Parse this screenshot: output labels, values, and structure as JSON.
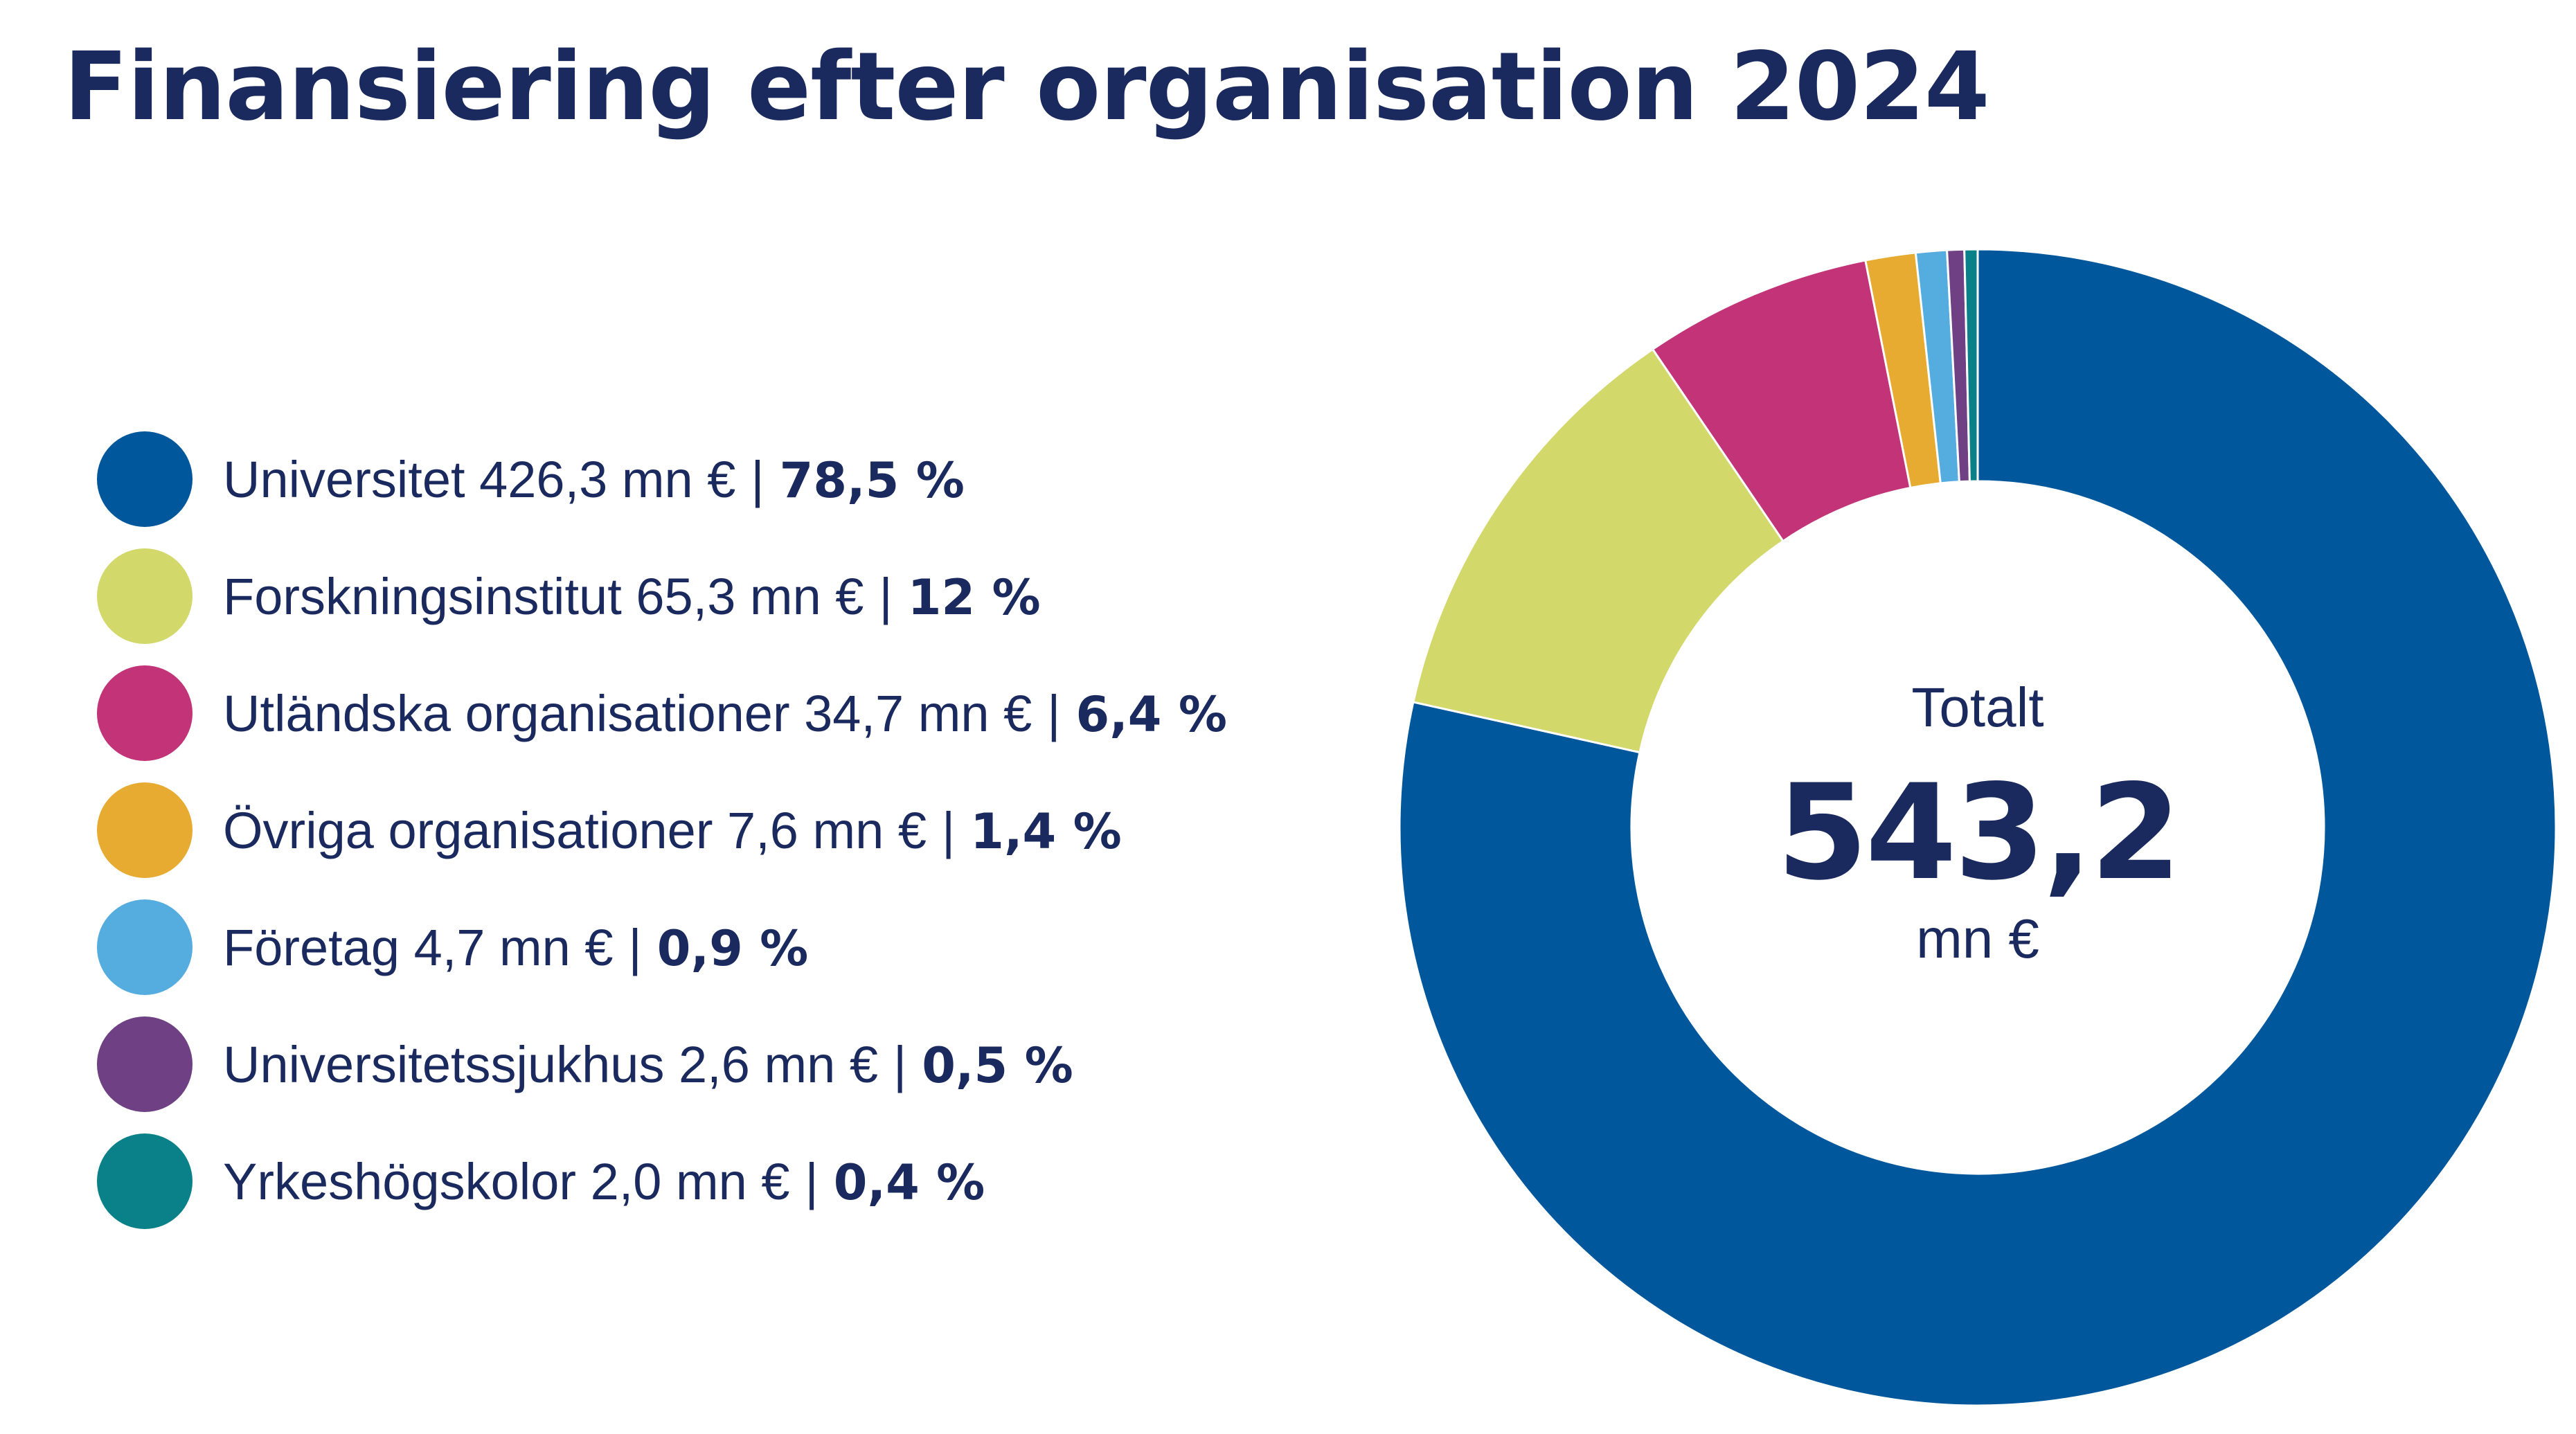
{
  "chart_data": {
    "type": "pie",
    "title": "Finansiering efter organisation 2024",
    "unit": "mn €",
    "categories": [
      "Universitet",
      "Forskningsinstitut",
      "Utländska organisationer",
      "Övriga organisationer",
      "Företag",
      "Universitetssjukhus",
      "Yrkeshögskolor"
    ],
    "values": [
      426.3,
      65.3,
      34.7,
      7.6,
      4.7,
      2.6,
      2.0
    ],
    "value_labels": [
      "426,3 mn €",
      "65,3 mn €",
      "34,7 mn €",
      "7,6 mn €",
      "4,7 mn €",
      "2,6 mn €",
      "2,0 mn €"
    ],
    "percent_labels": [
      "78,5 %",
      "12 %",
      "6,4 %",
      "1,4 %",
      "0,9 %",
      "0,5 %",
      "0,4 %"
    ],
    "colors": [
      "#00579b",
      "#d2d96a",
      "#c23378",
      "#e6ab30",
      "#55acdf",
      "#6f4184",
      "#0a8189"
    ],
    "legend_position": "left",
    "center_label": {
      "top": "Totalt",
      "value": "543,2",
      "unit": "mn €"
    }
  }
}
